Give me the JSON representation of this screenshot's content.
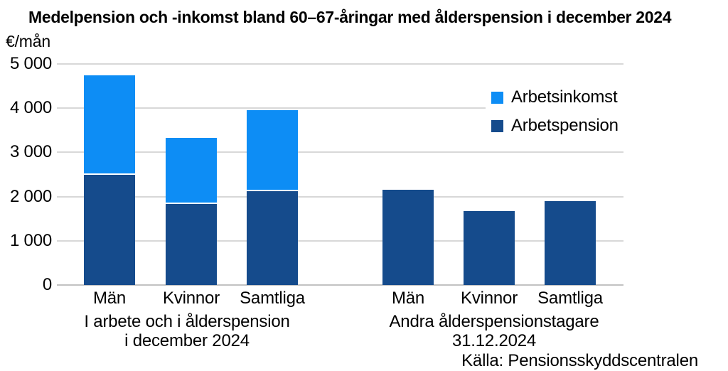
{
  "chart_data": {
    "type": "bar",
    "stacked": true,
    "title": "Medelpension och -inkomst bland 60–67-åringar med ålderspension i december 2024",
    "y_unit": "€/mån",
    "ylabel": "€/mån",
    "ylim": [
      0,
      5000
    ],
    "ytick_step": 1000,
    "ytick_labels": [
      "5 000",
      "4 000",
      "3 000",
      "2 000",
      "1 000",
      "0"
    ],
    "grid": "horizontal",
    "legend_position": "top-right",
    "legend": [
      {
        "label": "Arbetsinkomst",
        "color": "#0d8df5"
      },
      {
        "label": "Arbetspension",
        "color": "#154b8c"
      }
    ],
    "groups": [
      {
        "label_lines": [
          "I arbete och i ålderspension",
          "i december 2024"
        ],
        "categories": [
          "Män",
          "Kvinnor",
          "Samtliga"
        ],
        "series": [
          {
            "name": "Arbetspension",
            "color": "#154b8c",
            "values": [
              2500,
              1830,
              2130
            ]
          },
          {
            "name": "Arbetsinkomst",
            "color": "#0d8df5",
            "values": [
              2250,
              1500,
              1830
            ]
          }
        ]
      },
      {
        "label_lines": [
          "Andra ålderspensionstagare",
          "31.12.2024"
        ],
        "categories": [
          "Män",
          "Kvinnor",
          "Samtliga"
        ],
        "series": [
          {
            "name": "Arbetspension",
            "color": "#154b8c",
            "values": [
              2160,
              1680,
              1900
            ]
          },
          {
            "name": "Arbetsinkomst",
            "color": "#0d8df5",
            "values": [
              0,
              0,
              0
            ]
          }
        ]
      }
    ],
    "source": "Källa: Pensionsskyddscentralen"
  }
}
